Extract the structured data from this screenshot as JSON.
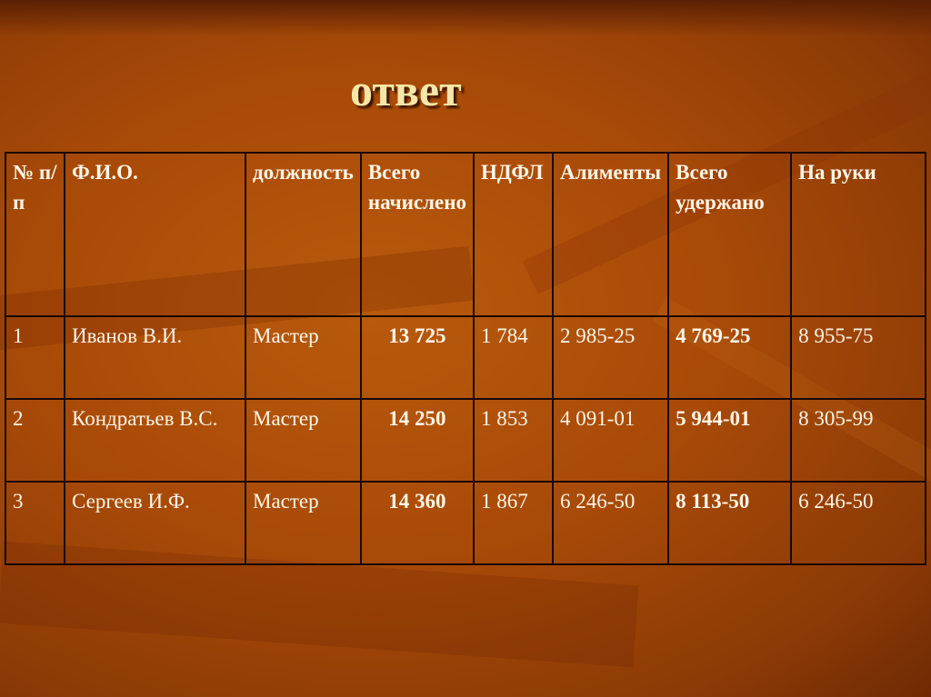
{
  "title": "ответ",
  "table": {
    "headers": [
      "№ п/п",
      "Ф.И.О.",
      "должность",
      "Всего начислено",
      "НДФЛ",
      "Алименты",
      "Всего удержано",
      "На руки"
    ],
    "rows": [
      [
        "1",
        "Иванов В.И.",
        "Мастер",
        "13 725",
        "1 784",
        "2 985-25",
        "4 769-25",
        "8 955-75"
      ],
      [
        "2",
        "Кондратьев В.С.",
        "Мастер",
        "14 250",
        "1 853",
        "4 091-01",
        "5 944-01",
        "8 305-99"
      ],
      [
        "3",
        "Сергеев И.Ф.",
        "Мастер",
        "14 360",
        "1 867",
        "6 246-50",
        "8 113-50",
        "6 246-50"
      ]
    ]
  }
}
